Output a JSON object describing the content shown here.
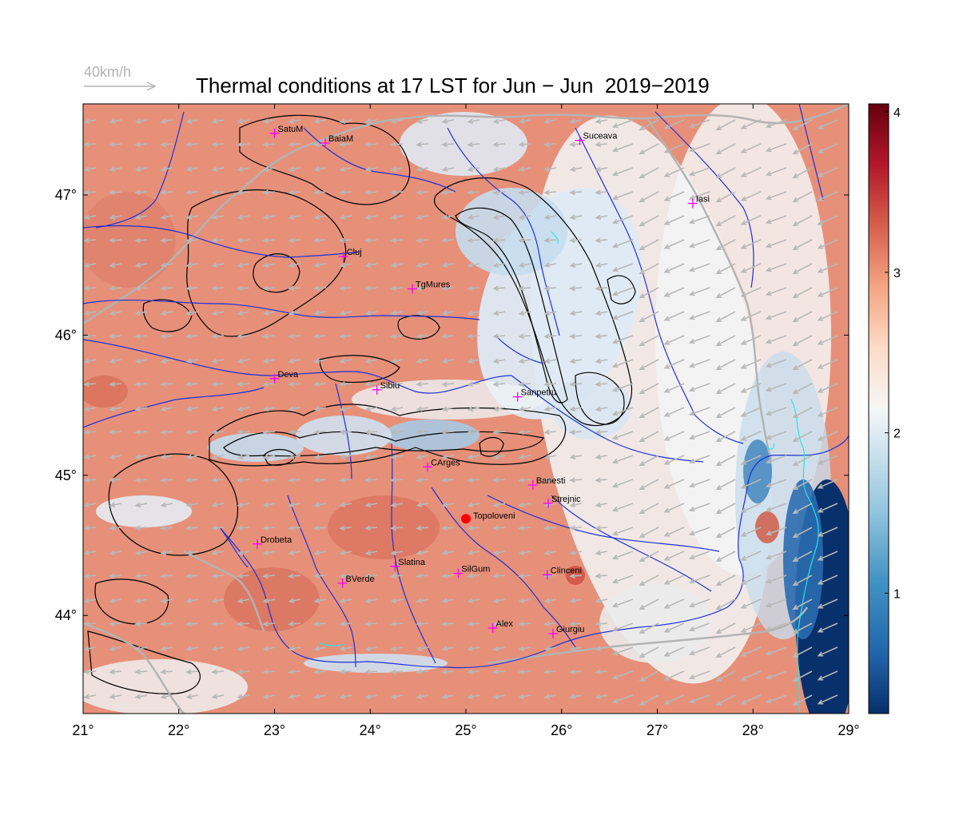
{
  "title": "Thermal conditions at 17 LST for Jun − Jun  2019−2019",
  "wind_scale_label": "40km/h",
  "colors": {
    "low": "#08306b",
    "mid": "#f7f7f7",
    "high": "#67000d",
    "rivers": "#1f2fd6",
    "borders": "#b3b3b3",
    "contours": "#000000",
    "arrows": "#b8b8b8",
    "station_marker": "#ff00ff",
    "highlight_station": "#ff0000",
    "coast": "#22e6e6"
  },
  "map": {
    "lon_range": [
      21,
      29
    ],
    "lat_range": [
      43.3,
      47.65
    ],
    "x_ticks": [
      {
        "value": 21,
        "label": "21°"
      },
      {
        "value": 22,
        "label": "22°"
      },
      {
        "value": 23,
        "label": "23°"
      },
      {
        "value": 24,
        "label": "24°"
      },
      {
        "value": 25,
        "label": "25°"
      },
      {
        "value": 26,
        "label": "26°"
      },
      {
        "value": 27,
        "label": "27°"
      },
      {
        "value": 28,
        "label": "28°"
      },
      {
        "value": 29,
        "label": "29°"
      }
    ],
    "y_ticks": [
      {
        "value": 44,
        "label": "44°"
      },
      {
        "value": 45,
        "label": "45°"
      },
      {
        "value": 46,
        "label": "46°"
      },
      {
        "value": 47,
        "label": "47°"
      }
    ]
  },
  "colorbar": {
    "range": [
      0.25,
      4.05
    ],
    "ticks": [
      {
        "value": 1,
        "label": "1"
      },
      {
        "value": 2,
        "label": "2"
      },
      {
        "value": 3,
        "label": "3"
      },
      {
        "value": 4,
        "label": "4"
      }
    ]
  },
  "stations": [
    {
      "name": "SatuM",
      "lon": 23.0,
      "lat": 47.44
    },
    {
      "name": "BaiaM",
      "lon": 23.53,
      "lat": 47.37
    },
    {
      "name": "Suceava",
      "lon": 26.19,
      "lat": 47.39
    },
    {
      "name": "Iasi",
      "lon": 27.37,
      "lat": 46.94
    },
    {
      "name": "Cluj",
      "lon": 23.72,
      "lat": 46.56
    },
    {
      "name": "TgMures",
      "lon": 24.44,
      "lat": 46.33
    },
    {
      "name": "Deva",
      "lon": 23.0,
      "lat": 45.69
    },
    {
      "name": "Sibiu",
      "lon": 24.07,
      "lat": 45.61
    },
    {
      "name": "Sanpetru",
      "lon": 25.54,
      "lat": 45.56
    },
    {
      "name": "CArges",
      "lon": 24.6,
      "lat": 45.06
    },
    {
      "name": "Banesti",
      "lon": 25.7,
      "lat": 44.93
    },
    {
      "name": "Strejnic",
      "lon": 25.86,
      "lat": 44.8
    },
    {
      "name": "Drobeta",
      "lon": 22.82,
      "lat": 44.51
    },
    {
      "name": "Slatina",
      "lon": 24.26,
      "lat": 44.35
    },
    {
      "name": "SilGum",
      "lon": 24.92,
      "lat": 44.3
    },
    {
      "name": "Clinceni",
      "lon": 25.85,
      "lat": 44.29
    },
    {
      "name": "BVerde",
      "lon": 23.71,
      "lat": 44.23
    },
    {
      "name": "Alex",
      "lon": 25.28,
      "lat": 43.91
    },
    {
      "name": "Giurgiu",
      "lon": 25.91,
      "lat": 43.87
    }
  ],
  "highlight_station": {
    "name": "Topoloveni",
    "lon": 25.0,
    "lat": 44.69
  }
}
